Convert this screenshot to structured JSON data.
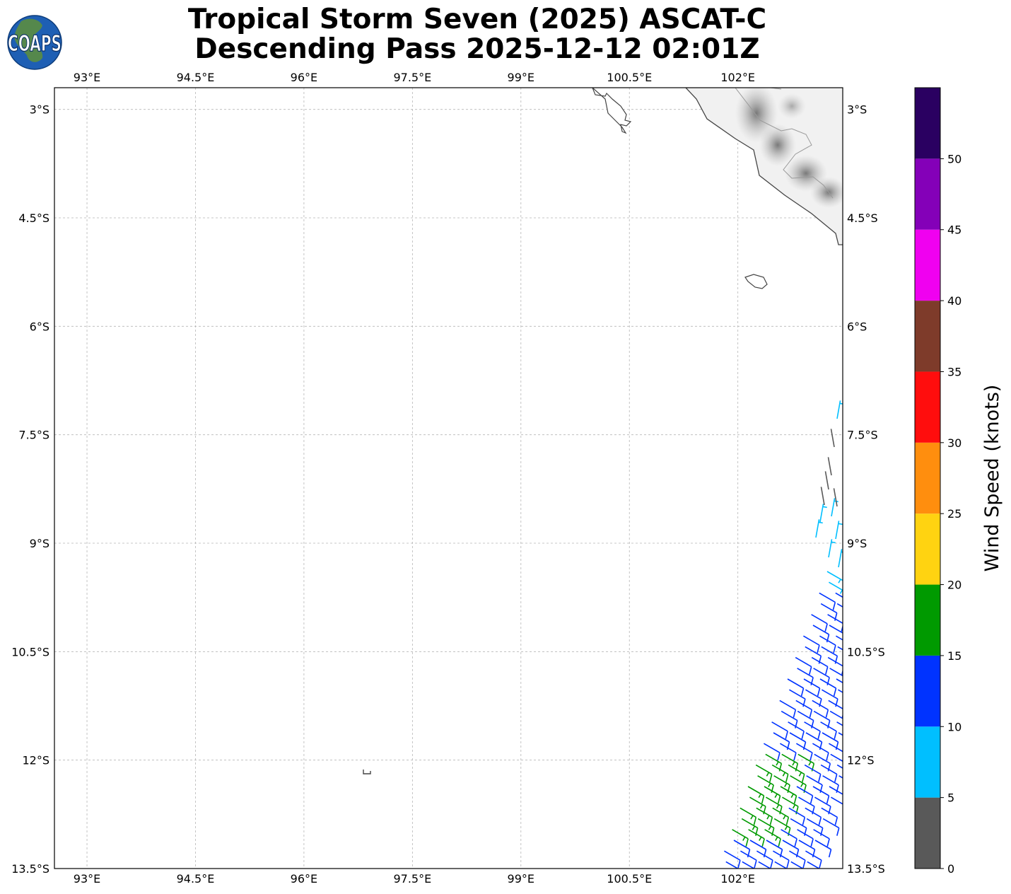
{
  "title": {
    "line1": "Tropical Storm Seven (2025) ASCAT-C",
    "line2": "Descending Pass 2025-12-12 02:01Z"
  },
  "logo": {
    "text": "COAPS",
    "icon": "globe-logo"
  },
  "map": {
    "lon_range": [
      92.55,
      103.45
    ],
    "lat_range": [
      -13.5,
      -2.7
    ],
    "lon_ticks": [
      {
        "value": 93,
        "label": "93°E"
      },
      {
        "value": 94.5,
        "label": "94.5°E"
      },
      {
        "value": 96,
        "label": "96°E"
      },
      {
        "value": 97.5,
        "label": "97.5°E"
      },
      {
        "value": 99,
        "label": "99°E"
      },
      {
        "value": 100.5,
        "label": "100.5°E"
      },
      {
        "value": 102,
        "label": "102°E"
      }
    ],
    "lat_ticks": [
      {
        "value": -3,
        "label": "3°S"
      },
      {
        "value": -4.5,
        "label": "4.5°S"
      },
      {
        "value": -6,
        "label": "6°S"
      },
      {
        "value": -7.5,
        "label": "7.5°S"
      },
      {
        "value": -9,
        "label": "9°S"
      },
      {
        "value": -10.5,
        "label": "10.5°S"
      },
      {
        "value": -12,
        "label": "12°S"
      },
      {
        "value": -13.5,
        "label": "13.5°S"
      }
    ],
    "grid": true,
    "coastline_color": "#444444",
    "terrain_color": "#9a9a9a"
  },
  "colorbar": {
    "label": "Wind Speed (knots)",
    "bins": [
      {
        "from": 0,
        "to": 5,
        "color": "#595959"
      },
      {
        "from": 5,
        "to": 10,
        "color": "#00bfff"
      },
      {
        "from": 10,
        "to": 15,
        "color": "#0033ff"
      },
      {
        "from": 15,
        "to": 20,
        "color": "#009a00"
      },
      {
        "from": 20,
        "to": 25,
        "color": "#ffd311"
      },
      {
        "from": 25,
        "to": 30,
        "color": "#ff8e0e"
      },
      {
        "from": 30,
        "to": 35,
        "color": "#ff0d0d"
      },
      {
        "from": 35,
        "to": 40,
        "color": "#7e3b2a"
      },
      {
        "from": 40,
        "to": 45,
        "color": "#f000f0"
      },
      {
        "from": 45,
        "to": 50,
        "color": "#8400b8"
      },
      {
        "from": 50,
        "to": 55,
        "color": "#2a0061"
      }
    ],
    "tick_labels": [
      "0",
      "5",
      "10",
      "15",
      "20",
      "25",
      "30",
      "35",
      "40",
      "45",
      "50"
    ]
  }
}
